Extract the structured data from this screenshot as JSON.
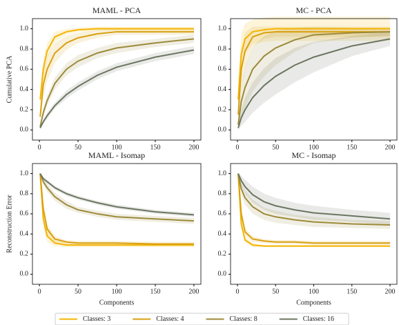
{
  "chart_data": [
    {
      "type": "line",
      "title": "MAML - PCA",
      "ylabel": "Cumulative PCA",
      "x": [
        1,
        5,
        10,
        20,
        35,
        50,
        75,
        100,
        150,
        200
      ],
      "xlim": [
        -9,
        209
      ],
      "xticks": [
        0,
        50,
        100,
        150,
        200
      ],
      "ylim": [
        -0.1,
        1.1
      ],
      "yticks": [
        {
          "value": 0,
          "label": "0.0"
        },
        0.2,
        0.4,
        0.6,
        0.8,
        {
          "value": 1,
          "label": "1.0"
        }
      ],
      "legend": "bottom",
      "series": [
        {
          "name": "Classes: 3",
          "color": "#f4b400",
          "values": [
            0.3,
            0.6,
            0.78,
            0.92,
            0.97,
            0.99,
            1,
            1,
            1,
            1
          ],
          "errors": [
            0.08,
            0.1,
            0.08,
            0.05,
            0.03,
            0.02,
            0.02,
            0.02,
            0.02,
            0.02
          ]
        },
        {
          "name": "Classes: 4",
          "color": "#d8a010",
          "values": [
            0.13,
            0.45,
            0.6,
            0.76,
            0.86,
            0.91,
            0.95,
            0.97,
            0.97,
            0.97
          ],
          "errors": [
            0.06,
            0.12,
            0.12,
            0.1,
            0.07,
            0.05,
            0.04,
            0.03,
            0.03,
            0.03
          ]
        },
        {
          "name": "Classes: 8",
          "color": "#9c8a3a",
          "values": [
            0.03,
            0.17,
            0.29,
            0.46,
            0.6,
            0.68,
            0.76,
            0.81,
            0.86,
            0.9
          ],
          "errors": [
            0.02,
            0.04,
            0.05,
            0.06,
            0.06,
            0.06,
            0.05,
            0.05,
            0.04,
            0.04
          ]
        },
        {
          "name": "Classes: 16",
          "color": "#6b7560",
          "values": [
            0.02,
            0.08,
            0.14,
            0.24,
            0.35,
            0.43,
            0.54,
            0.62,
            0.72,
            0.79
          ],
          "errors": [
            0.01,
            0.02,
            0.03,
            0.03,
            0.04,
            0.04,
            0.04,
            0.04,
            0.04,
            0.04
          ]
        }
      ]
    },
    {
      "type": "line",
      "title": "MC - PCA",
      "x": [
        1,
        5,
        10,
        20,
        35,
        50,
        75,
        100,
        150,
        200
      ],
      "xlim": [
        -9,
        209
      ],
      "xticks": [
        0,
        50,
        100,
        150,
        200
      ],
      "ylim": [
        -0.1,
        1.1
      ],
      "yticks": [
        {
          "value": 0,
          "label": "0.0"
        },
        0.2,
        0.4,
        0.6,
        0.8,
        {
          "value": 1,
          "label": "1.0"
        }
      ],
      "series": [
        {
          "color": "#f4b400",
          "values": [
            0.3,
            0.75,
            0.9,
            0.97,
            0.99,
            1,
            1,
            1,
            1,
            1
          ],
          "errors": [
            0.2,
            0.2,
            0.15,
            0.12,
            0.12,
            0.12,
            0.12,
            0.12,
            0.12,
            0.12
          ]
        },
        {
          "color": "#d8a010",
          "values": [
            0.15,
            0.6,
            0.78,
            0.92,
            0.96,
            0.97,
            0.97,
            0.97,
            0.97,
            0.97
          ],
          "errors": [
            0.1,
            0.2,
            0.18,
            0.1,
            0.06,
            0.05,
            0.05,
            0.05,
            0.05,
            0.05
          ]
        },
        {
          "color": "#9c8a3a",
          "values": [
            0.05,
            0.28,
            0.42,
            0.6,
            0.73,
            0.81,
            0.89,
            0.94,
            0.96,
            0.97
          ],
          "errors": [
            0.05,
            0.15,
            0.2,
            0.22,
            0.2,
            0.17,
            0.12,
            0.08,
            0.05,
            0.04
          ]
        },
        {
          "color": "#6b7560",
          "values": [
            0.02,
            0.12,
            0.2,
            0.32,
            0.44,
            0.53,
            0.64,
            0.72,
            0.83,
            0.9
          ],
          "errors": [
            0.02,
            0.08,
            0.12,
            0.15,
            0.17,
            0.18,
            0.17,
            0.15,
            0.1,
            0.07
          ]
        }
      ]
    },
    {
      "type": "line",
      "title": "MAML - Isomap",
      "ylabel": "Reconstruction Error",
      "xlabel": "Components",
      "x": [
        1,
        5,
        10,
        20,
        35,
        50,
        75,
        100,
        150,
        200
      ],
      "xlim": [
        -9,
        209
      ],
      "xticks": [
        0,
        50,
        100,
        150,
        200
      ],
      "ylim": [
        -0.1,
        1.1
      ],
      "yticks": [
        {
          "value": 0,
          "label": "0.0"
        },
        0.2,
        0.4,
        0.6,
        0.8,
        {
          "value": 1,
          "label": "1.0"
        }
      ],
      "series": [
        {
          "color": "#f4b400",
          "values": [
            1,
            0.55,
            0.38,
            0.31,
            0.29,
            0.29,
            0.29,
            0.29,
            0.29,
            0.29
          ],
          "errors": [
            0,
            0.08,
            0.06,
            0.03,
            0.02,
            0.02,
            0.02,
            0.02,
            0.02,
            0.02
          ]
        },
        {
          "color": "#d8a010",
          "values": [
            1,
            0.65,
            0.45,
            0.35,
            0.32,
            0.31,
            0.31,
            0.31,
            0.3,
            0.3
          ],
          "errors": [
            0,
            0.06,
            0.05,
            0.03,
            0.02,
            0.02,
            0.02,
            0.02,
            0.02,
            0.02
          ]
        },
        {
          "color": "#9c8a3a",
          "values": [
            1,
            0.92,
            0.86,
            0.77,
            0.69,
            0.64,
            0.6,
            0.57,
            0.55,
            0.53
          ],
          "errors": [
            0,
            0.03,
            0.04,
            0.04,
            0.04,
            0.03,
            0.03,
            0.03,
            0.03,
            0.03
          ]
        },
        {
          "color": "#6b7560",
          "values": [
            1,
            0.95,
            0.92,
            0.86,
            0.8,
            0.76,
            0.71,
            0.67,
            0.62,
            0.59
          ],
          "errors": [
            0,
            0.02,
            0.02,
            0.02,
            0.02,
            0.02,
            0.02,
            0.02,
            0.02,
            0.02
          ]
        }
      ]
    },
    {
      "type": "line",
      "title": "MC - Isomap",
      "xlabel": "Components",
      "x": [
        1,
        5,
        10,
        20,
        35,
        50,
        75,
        100,
        150,
        200
      ],
      "xlim": [
        -9,
        209
      ],
      "xticks": [
        0,
        50,
        100,
        150,
        200
      ],
      "ylim": [
        -0.1,
        1.1
      ],
      "yticks": [
        {
          "value": 0,
          "label": "0.0"
        },
        0.2,
        0.4,
        0.6,
        0.8,
        {
          "value": 1,
          "label": "1.0"
        }
      ],
      "series": [
        {
          "color": "#f4b400",
          "values": [
            1,
            0.5,
            0.34,
            0.29,
            0.28,
            0.28,
            0.28,
            0.28,
            0.28,
            0.28
          ],
          "errors": [
            0,
            0.05,
            0.03,
            0.02,
            0.01,
            0.01,
            0.01,
            0.01,
            0.01,
            0.01
          ]
        },
        {
          "color": "#d8a010",
          "values": [
            1,
            0.6,
            0.42,
            0.35,
            0.33,
            0.32,
            0.32,
            0.31,
            0.31,
            0.31
          ],
          "errors": [
            0,
            0.06,
            0.04,
            0.03,
            0.02,
            0.02,
            0.02,
            0.02,
            0.02,
            0.02
          ]
        },
        {
          "color": "#9c8a3a",
          "values": [
            1,
            0.85,
            0.76,
            0.67,
            0.6,
            0.57,
            0.54,
            0.52,
            0.5,
            0.49
          ],
          "errors": [
            0,
            0.06,
            0.07,
            0.07,
            0.06,
            0.06,
            0.05,
            0.05,
            0.04,
            0.04
          ]
        },
        {
          "color": "#6b7560",
          "values": [
            1,
            0.93,
            0.87,
            0.79,
            0.72,
            0.68,
            0.64,
            0.61,
            0.58,
            0.55
          ],
          "errors": [
            0,
            0.05,
            0.07,
            0.08,
            0.08,
            0.08,
            0.07,
            0.07,
            0.06,
            0.06
          ]
        }
      ]
    }
  ]
}
